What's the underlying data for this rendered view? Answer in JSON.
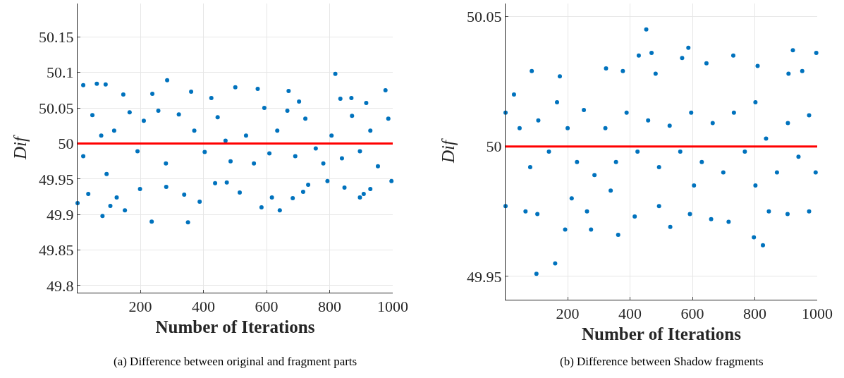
{
  "chart_data": [
    {
      "type": "scatter",
      "xlabel": "Number of Iterations",
      "ylabel": "Dif",
      "annotations": [
        "(a) Difference between original and fragment parts"
      ],
      "color": "#0072bd",
      "marker": "circle",
      "grid": true,
      "x": [
        1,
        19,
        62,
        90,
        80,
        105,
        125,
        146,
        151,
        236,
        238,
        285,
        351,
        361,
        388,
        425,
        501,
        515,
        572,
        584,
        642,
        617,
        670,
        683,
        703,
        716,
        818,
        834,
        869,
        896,
        908,
        916,
        977,
        996,
        929,
        847,
        793,
        732,
        474,
        437,
        339,
        282,
        199,
        35,
        48,
        76,
        117,
        166,
        191,
        211,
        257,
        281,
        322,
        371,
        404,
        445,
        470,
        486,
        535,
        560,
        593,
        609,
        634,
        666,
        691,
        723,
        756,
        780,
        806,
        839,
        871,
        896,
        929,
        953,
        986,
        19,
        93
      ],
      "values": [
        49.916,
        50.082,
        50.084,
        50.083,
        49.898,
        49.912,
        49.924,
        50.069,
        49.906,
        49.89,
        50.07,
        50.089,
        49.889,
        50.073,
        49.918,
        50.064,
        50.079,
        49.931,
        50.077,
        49.91,
        49.906,
        49.924,
        50.074,
        49.923,
        50.059,
        49.932,
        50.098,
        50.063,
        50.064,
        49.924,
        49.929,
        50.057,
        50.075,
        49.947,
        49.936,
        49.938,
        49.947,
        49.942,
        49.945,
        49.944,
        49.928,
        49.939,
        49.936,
        49.929,
        50.04,
        50.011,
        50.018,
        50.044,
        49.989,
        50.032,
        50.046,
        49.972,
        50.041,
        50.018,
        49.988,
        50.037,
        50.004,
        49.975,
        50.011,
        49.972,
        50.05,
        49.986,
        50.018,
        50.046,
        49.982,
        50.035,
        49.993,
        49.972,
        50.011,
        49.979,
        50.039,
        49.989,
        50.018,
        49.968,
        50.035,
        49.982,
        49.957
      ],
      "xlim": [
        1,
        1000
      ],
      "xticks": [
        200,
        400,
        600,
        800,
        1000
      ],
      "ylim": [
        49.79,
        50.197
      ],
      "yticks": [
        49.8,
        49.85,
        49.9,
        49.95,
        50,
        50.05,
        50.1,
        50.15
      ],
      "ref_lines": [
        {
          "axis": "y",
          "value": 50,
          "color": "#ff0000"
        }
      ]
    },
    {
      "type": "scatter",
      "xlabel": "Number of Iterations",
      "ylabel": "Dif",
      "annotations": [
        "(b) Difference between Shadow fragments"
      ],
      "color": "#0072bd",
      "marker": "circle",
      "grid": true,
      "x": [
        1,
        1,
        85,
        100,
        160,
        175,
        192,
        275,
        323,
        377,
        362,
        428,
        452,
        469,
        482,
        529,
        567,
        587,
        645,
        716,
        731,
        797,
        809,
        826,
        908,
        922,
        952,
        997,
        974,
        905,
        845,
        660,
        592,
        493,
        415,
        262,
        213,
        103,
        65,
        28,
        46,
        80,
        106,
        140,
        166,
        200,
        230,
        252,
        286,
        321,
        355,
        389,
        424,
        458,
        493,
        527,
        561,
        596,
        630,
        665,
        699,
        733,
        768,
        802,
        836,
        871,
        906,
        940,
        974,
        995,
        338,
        605,
        802
      ],
      "values": [
        50.013,
        49.977,
        50.029,
        49.951,
        49.955,
        50.027,
        49.968,
        49.968,
        50.03,
        50.029,
        49.966,
        50.035,
        50.045,
        50.036,
        50.028,
        49.969,
        50.034,
        50.038,
        50.032,
        49.971,
        50.035,
        49.965,
        50.031,
        49.962,
        50.028,
        50.037,
        50.029,
        50.036,
        49.975,
        49.974,
        49.975,
        49.972,
        49.974,
        49.977,
        49.973,
        49.975,
        49.98,
        49.974,
        49.975,
        50.02,
        50.007,
        49.992,
        50.01,
        49.998,
        50.017,
        50.007,
        49.994,
        50.014,
        49.989,
        50.007,
        49.994,
        50.013,
        49.998,
        50.01,
        49.992,
        50.008,
        49.998,
        50.013,
        49.994,
        50.009,
        49.99,
        50.013,
        49.998,
        50.017,
        50.003,
        49.99,
        50.009,
        49.996,
        50.012,
        49.99,
        49.983,
        49.985,
        49.985
      ],
      "xlim": [
        1,
        1000
      ],
      "xticks": [
        200,
        400,
        600,
        800,
        1000
      ],
      "ylim": [
        49.941,
        50.055
      ],
      "yticks": [
        49.95,
        50,
        50.05
      ],
      "ref_lines": [
        {
          "axis": "y",
          "value": 50,
          "color": "#ff0000"
        }
      ]
    }
  ]
}
